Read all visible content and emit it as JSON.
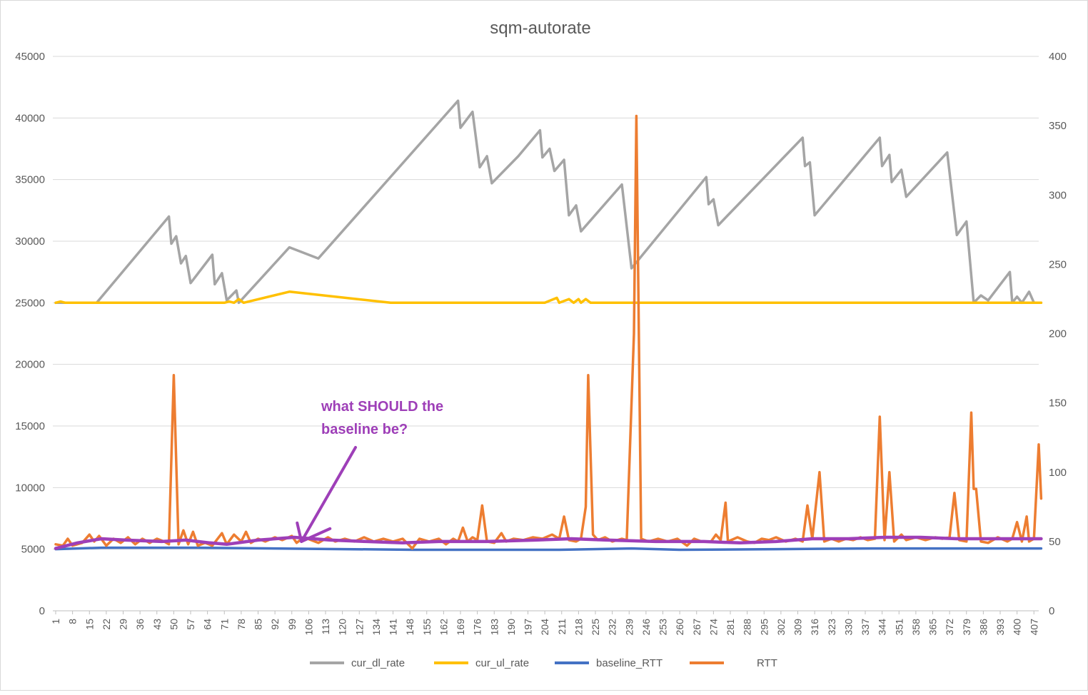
{
  "chart_data": {
    "type": "line",
    "title": "sqm-autorate",
    "y_left": {
      "min": 0,
      "max": 45000,
      "ticks": [
        "0",
        "5000",
        "10000",
        "15000",
        "20000",
        "25000",
        "30000",
        "35000",
        "40000",
        "45000"
      ]
    },
    "y_right": {
      "min": 0,
      "max": 400,
      "ticks": [
        "0",
        "50",
        "100",
        "150",
        "200",
        "250",
        "300",
        "350",
        "400"
      ]
    },
    "x_range": [
      1,
      410
    ],
    "x_ticks": [
      "1",
      "8",
      "15",
      "22",
      "29",
      "36",
      "43",
      "50",
      "57",
      "64",
      "71",
      "78",
      "85",
      "92",
      "99",
      "106",
      "113",
      "120",
      "127",
      "134",
      "141",
      "148",
      "155",
      "162",
      "169",
      "176",
      "183",
      "190",
      "197",
      "204",
      "211",
      "218",
      "225",
      "232",
      "239",
      "246",
      "253",
      "260",
      "267",
      "274",
      "281",
      "288",
      "295",
      "302",
      "309",
      "316",
      "323",
      "330",
      "337",
      "344",
      "351",
      "358",
      "365",
      "372",
      "379",
      "386",
      "393",
      "400",
      "407"
    ],
    "gridlines": true,
    "legend_position": "bottom",
    "colors": {
      "cur_dl_rate": "#a5a5a5",
      "cur_ul_rate": "#ffc000",
      "baseline_RTT": "#4472c4",
      "RTT": "#ed7d31",
      "annotation": "#9e3fb8"
    },
    "series": [
      {
        "name": "cur_dl_rate",
        "axis": "left",
        "points": [
          [
            1,
            25000
          ],
          [
            18,
            25000
          ],
          [
            48,
            32000
          ],
          [
            49,
            29800
          ],
          [
            51,
            30400
          ],
          [
            53,
            28200
          ],
          [
            55,
            28800
          ],
          [
            57,
            26600
          ],
          [
            66,
            28900
          ],
          [
            67,
            26500
          ],
          [
            70,
            27400
          ],
          [
            72,
            25200
          ],
          [
            76,
            26000
          ],
          [
            77,
            25000
          ],
          [
            98,
            29500
          ],
          [
            110,
            28600
          ],
          [
            168,
            41400
          ],
          [
            169,
            39200
          ],
          [
            174,
            40500
          ],
          [
            177,
            36000
          ],
          [
            180,
            36900
          ],
          [
            182,
            34700
          ],
          [
            193,
            36900
          ],
          [
            202,
            39000
          ],
          [
            203,
            36800
          ],
          [
            206,
            37500
          ],
          [
            208,
            35700
          ],
          [
            212,
            36600
          ],
          [
            214,
            32100
          ],
          [
            217,
            32900
          ],
          [
            219,
            30800
          ],
          [
            236,
            34600
          ],
          [
            240,
            27800
          ],
          [
            271,
            35200
          ],
          [
            272,
            33000
          ],
          [
            274,
            33400
          ],
          [
            276,
            31300
          ],
          [
            311,
            38400
          ],
          [
            312,
            36100
          ],
          [
            314,
            36400
          ],
          [
            316,
            32100
          ],
          [
            343,
            38400
          ],
          [
            344,
            36100
          ],
          [
            347,
            37000
          ],
          [
            348,
            34800
          ],
          [
            352,
            35800
          ],
          [
            354,
            33600
          ],
          [
            371,
            37200
          ],
          [
            375,
            30500
          ],
          [
            379,
            31600
          ],
          [
            382,
            25000
          ],
          [
            385,
            25600
          ],
          [
            388,
            25200
          ],
          [
            397,
            27500
          ],
          [
            398,
            25000
          ],
          [
            400,
            25500
          ],
          [
            402,
            25000
          ],
          [
            405,
            25900
          ],
          [
            407,
            25000
          ],
          [
            410,
            25000
          ]
        ]
      },
      {
        "name": "cur_ul_rate",
        "axis": "left",
        "points": [
          [
            1,
            25000
          ],
          [
            3,
            25100
          ],
          [
            5,
            25000
          ],
          [
            71,
            25000
          ],
          [
            73,
            25100
          ],
          [
            75,
            25000
          ],
          [
            77,
            25300
          ],
          [
            79,
            25000
          ],
          [
            98,
            25900
          ],
          [
            140,
            25000
          ],
          [
            204,
            25000
          ],
          [
            209,
            25400
          ],
          [
            210,
            25000
          ],
          [
            214,
            25300
          ],
          [
            216,
            25000
          ],
          [
            218,
            25300
          ],
          [
            219,
            25000
          ],
          [
            221,
            25300
          ],
          [
            223,
            25000
          ],
          [
            410,
            25000
          ]
        ]
      },
      {
        "name": "baseline_RTT",
        "axis": "right",
        "points": [
          [
            1,
            44.5
          ],
          [
            20,
            45.5
          ],
          [
            60,
            45.5
          ],
          [
            150,
            44
          ],
          [
            210,
            44
          ],
          [
            240,
            45
          ],
          [
            260,
            44
          ],
          [
            300,
            44.5
          ],
          [
            340,
            45
          ],
          [
            370,
            45
          ],
          [
            410,
            45
          ]
        ]
      },
      {
        "name": "RTT",
        "axis": "right",
        "points": [
          [
            1,
            48
          ],
          [
            4,
            47
          ],
          [
            6,
            52
          ],
          [
            8,
            47
          ],
          [
            12,
            49
          ],
          [
            15,
            55
          ],
          [
            17,
            50
          ],
          [
            19,
            54
          ],
          [
            22,
            47
          ],
          [
            25,
            52
          ],
          [
            28,
            49
          ],
          [
            31,
            53
          ],
          [
            34,
            48
          ],
          [
            37,
            52
          ],
          [
            40,
            49
          ],
          [
            43,
            52
          ],
          [
            46,
            50
          ],
          [
            48,
            48
          ],
          [
            50,
            170
          ],
          [
            52,
            48
          ],
          [
            54,
            58
          ],
          [
            56,
            48
          ],
          [
            58,
            57
          ],
          [
            60,
            47
          ],
          [
            63,
            49
          ],
          [
            66,
            47
          ],
          [
            70,
            56
          ],
          [
            72,
            48
          ],
          [
            75,
            55
          ],
          [
            78,
            50
          ],
          [
            80,
            57
          ],
          [
            82,
            49
          ],
          [
            85,
            52
          ],
          [
            88,
            50
          ],
          [
            92,
            53
          ],
          [
            95,
            51
          ],
          [
            99,
            54
          ],
          [
            101,
            49
          ],
          [
            104,
            53
          ],
          [
            107,
            51
          ],
          [
            110,
            49
          ],
          [
            114,
            53
          ],
          [
            117,
            50
          ],
          [
            121,
            52
          ],
          [
            125,
            50
          ],
          [
            129,
            53
          ],
          [
            133,
            50
          ],
          [
            137,
            52
          ],
          [
            141,
            50
          ],
          [
            145,
            52
          ],
          [
            149,
            45
          ],
          [
            152,
            52
          ],
          [
            156,
            50
          ],
          [
            160,
            52
          ],
          [
            163,
            48
          ],
          [
            166,
            52
          ],
          [
            168,
            50
          ],
          [
            170,
            60
          ],
          [
            172,
            50
          ],
          [
            174,
            53
          ],
          [
            176,
            51
          ],
          [
            178,
            76
          ],
          [
            180,
            50
          ],
          [
            183,
            49
          ],
          [
            186,
            56
          ],
          [
            188,
            50
          ],
          [
            191,
            52
          ],
          [
            195,
            51
          ],
          [
            199,
            53
          ],
          [
            203,
            52
          ],
          [
            207,
            55
          ],
          [
            210,
            52
          ],
          [
            212,
            68
          ],
          [
            214,
            51
          ],
          [
            217,
            50
          ],
          [
            219,
            52
          ],
          [
            221,
            75
          ],
          [
            222,
            170
          ],
          [
            224,
            55
          ],
          [
            226,
            51
          ],
          [
            229,
            53
          ],
          [
            232,
            50
          ],
          [
            236,
            52
          ],
          [
            238,
            51
          ],
          [
            241,
            200
          ],
          [
            242,
            357
          ],
          [
            244,
            52
          ],
          [
            247,
            50
          ],
          [
            251,
            52
          ],
          [
            255,
            50
          ],
          [
            259,
            52
          ],
          [
            263,
            47
          ],
          [
            266,
            52
          ],
          [
            269,
            50
          ],
          [
            273,
            50
          ],
          [
            275,
            55
          ],
          [
            277,
            51
          ],
          [
            279,
            78
          ],
          [
            280,
            50
          ],
          [
            284,
            53
          ],
          [
            288,
            50
          ],
          [
            291,
            49
          ],
          [
            294,
            52
          ],
          [
            297,
            51
          ],
          [
            300,
            53
          ],
          [
            304,
            50
          ],
          [
            308,
            52
          ],
          [
            311,
            50
          ],
          [
            313,
            76
          ],
          [
            315,
            52
          ],
          [
            318,
            100
          ],
          [
            320,
            50
          ],
          [
            323,
            52
          ],
          [
            326,
            50
          ],
          [
            329,
            52
          ],
          [
            332,
            51
          ],
          [
            335,
            53
          ],
          [
            338,
            51
          ],
          [
            341,
            52
          ],
          [
            343,
            140
          ],
          [
            345,
            51
          ],
          [
            347,
            100
          ],
          [
            349,
            50
          ],
          [
            352,
            55
          ],
          [
            354,
            51
          ],
          [
            358,
            53
          ],
          [
            362,
            51
          ],
          [
            366,
            53
          ],
          [
            369,
            52
          ],
          [
            372,
            53
          ],
          [
            374,
            85
          ],
          [
            376,
            51
          ],
          [
            379,
            50
          ],
          [
            381,
            143
          ],
          [
            382,
            88
          ],
          [
            383,
            88
          ],
          [
            385,
            50
          ],
          [
            388,
            49
          ],
          [
            392,
            53
          ],
          [
            396,
            50
          ],
          [
            398,
            52
          ],
          [
            400,
            64
          ],
          [
            402,
            50
          ],
          [
            404,
            68
          ],
          [
            405,
            50
          ],
          [
            407,
            52
          ],
          [
            409,
            120
          ],
          [
            410,
            81
          ]
        ]
      },
      {
        "name": "",
        "axis": "right",
        "points": [
          [
            1,
            45
          ],
          [
            10,
            49
          ],
          [
            20,
            52
          ],
          [
            30,
            51
          ],
          [
            45,
            50
          ],
          [
            55,
            51
          ],
          [
            65,
            49
          ],
          [
            72,
            48
          ],
          [
            85,
            51
          ],
          [
            100,
            53
          ],
          [
            115,
            51
          ],
          [
            130,
            50
          ],
          [
            145,
            49
          ],
          [
            160,
            50
          ],
          [
            180,
            50
          ],
          [
            200,
            51
          ],
          [
            215,
            52
          ],
          [
            230,
            51
          ],
          [
            250,
            50
          ],
          [
            270,
            50
          ],
          [
            285,
            49
          ],
          [
            300,
            50
          ],
          [
            315,
            52
          ],
          [
            330,
            52
          ],
          [
            345,
            53
          ],
          [
            360,
            53
          ],
          [
            375,
            52
          ],
          [
            395,
            52
          ],
          [
            410,
            52
          ]
        ]
      }
    ],
    "annotations": [
      {
        "lines": [
          "what SHOULD the",
          "baseline be?"
        ],
        "arrow_to": [
          103,
          50
        ]
      }
    ],
    "legend": [
      "cur_dl_rate",
      "cur_ul_rate",
      "baseline_RTT",
      "RTT"
    ]
  }
}
